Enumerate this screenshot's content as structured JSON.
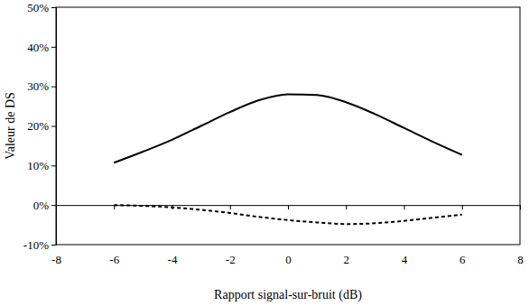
{
  "chart_data": {
    "type": "line",
    "x_label": "Rapport signal-sur-bruit (dB)",
    "y_label": "Valeur de DS",
    "x": [
      -6,
      -5,
      -4,
      -3,
      -2,
      -1,
      0,
      1,
      2,
      3,
      4,
      5,
      6
    ],
    "series": [
      {
        "color": "#000000",
        "line_style": "solid",
        "values": [
          10.7,
          13.5,
          16.5,
          20,
          23.5,
          26.5,
          28,
          27.8,
          26,
          23,
          19.5,
          16,
          12.7
        ]
      },
      {
        "color": "#000000",
        "line_style": "dashed",
        "values": [
          0,
          -0.2,
          -0.6,
          -1.2,
          -2,
          -3,
          -3.8,
          -4.4,
          -4.8,
          -4.6,
          -4,
          -3.2,
          -2.4
        ]
      }
    ],
    "xlim": [
      -8,
      8
    ],
    "xticks": [
      -8,
      -6,
      -4,
      -2,
      0,
      2,
      4,
      6,
      8
    ],
    "ylim": [
      -10,
      50
    ],
    "yticks": [
      {
        "value": -10,
        "label": "-10%"
      },
      {
        "value": 0,
        "label": "0%"
      },
      {
        "value": 10,
        "label": "10%"
      },
      {
        "value": 20,
        "label": "20%"
      },
      {
        "value": 30,
        "label": "30%"
      },
      {
        "value": 40,
        "label": "40%"
      },
      {
        "value": 50,
        "label": "50%"
      }
    ],
    "grid": false
  }
}
